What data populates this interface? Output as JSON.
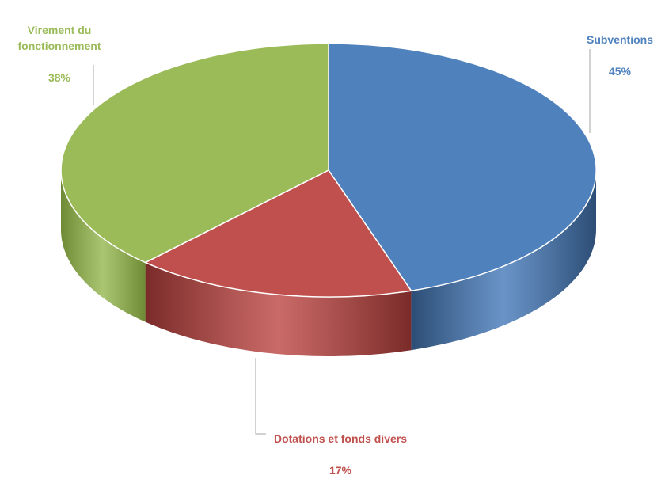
{
  "chart_data": {
    "type": "pie",
    "style": "3d-exploded-tilted",
    "legend": "none",
    "slices": [
      {
        "label": "Subventions",
        "value": 45,
        "percent_text": "45%",
        "color": "#4f81bd",
        "side_color": "#2c4d75",
        "label_color": "#4f81bd"
      },
      {
        "label": "Dotations et fonds divers",
        "value": 17,
        "percent_text": "17%",
        "color": "#c0504d",
        "side_color": "#7a2b29",
        "label_color": "#c0504d"
      },
      {
        "label": "Virement du fonctionnement",
        "value": 38,
        "percent_text": "38%",
        "color": "#9bbb59",
        "side_color": "#6e8a34",
        "label_color": "#9bbb59"
      }
    ]
  }
}
